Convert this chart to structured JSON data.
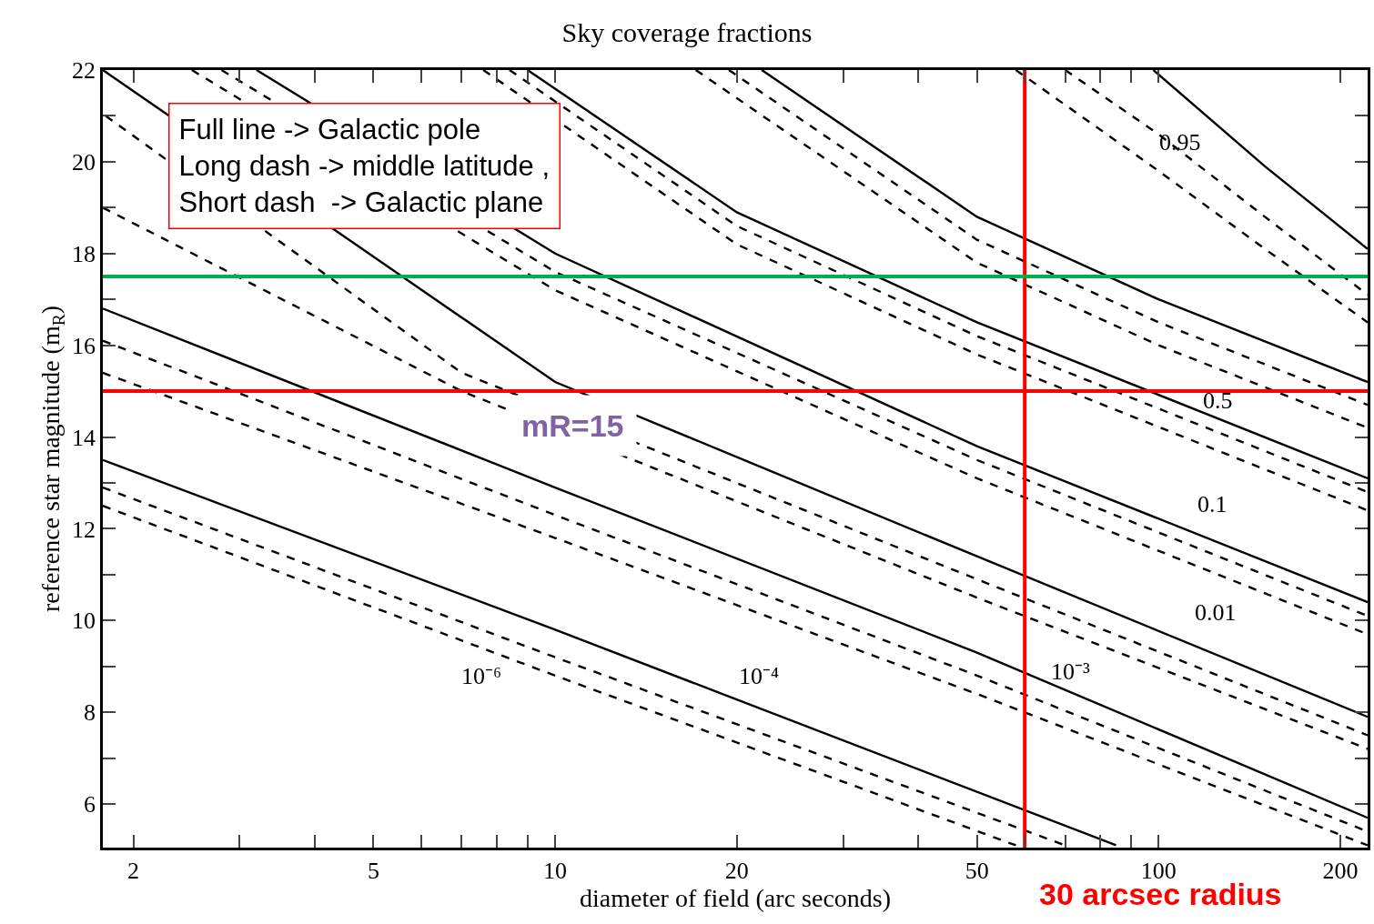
{
  "chart_data": {
    "type": "line",
    "title": "Sky coverage fractions",
    "xlabel": "diameter of field (arc seconds)",
    "ylabel": "reference star magnitude (m$_{R}$)",
    "log": "x",
    "xlim": [
      1.78,
      222
    ],
    "ylim": [
      5.05,
      22
    ],
    "xticks": [
      2,
      {
        "value": 3,
        "label": null
      },
      {
        "value": 4,
        "label": null
      },
      5,
      {
        "value": 6,
        "label": null
      },
      {
        "value": 7,
        "label": null
      },
      {
        "value": 8,
        "label": null
      },
      {
        "value": 9,
        "label": null
      },
      10,
      20,
      {
        "value": 30,
        "label": null
      },
      {
        "value": 40,
        "label": null
      },
      50,
      {
        "value": 60,
        "label": null
      },
      {
        "value": 70,
        "label": null
      },
      {
        "value": 80,
        "label": null
      },
      {
        "value": 90,
        "label": null
      },
      100,
      200
    ],
    "yticks": [
      6,
      {
        "value": 7,
        "label": null
      },
      8,
      {
        "value": 9,
        "label": null
      },
      10,
      {
        "value": 11,
        "label": null
      },
      12,
      {
        "value": 13,
        "label": null
      },
      14,
      {
        "value": 15,
        "label": null
      },
      16,
      {
        "value": 17,
        "label": null
      },
      18,
      {
        "value": 19,
        "label": null
      },
      20,
      {
        "value": 21,
        "label": null
      },
      22
    ],
    "series": [
      {
        "color": "#000000",
        "line_style": "solid",
        "x": [
          1.78,
          10,
          85
        ],
        "values": [
          13.5,
          9.8,
          5.1
        ]
      },
      {
        "color": "#000000",
        "line_style": "dashed",
        "x": [
          1.78,
          10,
          70
        ],
        "values": [
          12.9,
          9.2,
          5.1
        ]
      },
      {
        "color": "#000000",
        "line_style": "dashed",
        "x": [
          1.78,
          10,
          58
        ],
        "values": [
          12.5,
          8.8,
          5.1
        ]
      },
      {
        "color": "#000000",
        "line_style": "solid",
        "x": [
          1.78,
          10,
          50,
          222
        ],
        "values": [
          16.8,
          12.9,
          9.3,
          5.7
        ]
      },
      {
        "color": "#000000",
        "line_style": "dashed",
        "x": [
          1.78,
          10,
          50,
          222
        ],
        "values": [
          16.1,
          12.3,
          8.8,
          5.4
        ]
      },
      {
        "color": "#000000",
        "line_style": "dashed",
        "x": [
          1.78,
          10,
          50,
          222
        ],
        "values": [
          15.4,
          11.8,
          8.4,
          5.1
        ]
      },
      {
        "color": "#000000",
        "line_style": "solid",
        "x": [
          1.78,
          10,
          50,
          222
        ],
        "values": [
          22.0,
          15.2,
          11.4,
          7.9
        ]
      },
      {
        "color": "#000000",
        "line_style": "dashed",
        "x": [
          1.8,
          7,
          50,
          222
        ],
        "values": [
          21.0,
          15.4,
          10.9,
          7.5
        ]
      },
      {
        "color": "#000000",
        "line_style": "dashed",
        "x": [
          1.78,
          7,
          50,
          222
        ],
        "values": [
          19.0,
          15.0,
          10.5,
          7.2
        ]
      },
      {
        "color": "#000000",
        "line_style": "solid",
        "x": [
          3.2,
          10,
          50,
          222
        ],
        "values": [
          22.0,
          18.0,
          13.8,
          10.4
        ]
      },
      {
        "color": "#000000",
        "line_style": "dashed",
        "x": [
          2.8,
          10,
          50,
          222
        ],
        "values": [
          22.0,
          17.6,
          13.5,
          10.1
        ]
      },
      {
        "color": "#000000",
        "line_style": "dashed",
        "x": [
          2.5,
          10,
          50,
          222
        ],
        "values": [
          22.0,
          17.2,
          13.1,
          9.7
        ]
      },
      {
        "color": "#000000",
        "line_style": "solid",
        "x": [
          9,
          20,
          50,
          222
        ],
        "values": [
          22.0,
          18.9,
          16.5,
          13.1
        ]
      },
      {
        "color": "#000000",
        "line_style": "dashed",
        "x": [
          8.4,
          20,
          50,
          222
        ],
        "values": [
          22.0,
          18.6,
          16.2,
          12.8
        ]
      },
      {
        "color": "#000000",
        "line_style": "dashed",
        "x": [
          7.6,
          20,
          50,
          222
        ],
        "values": [
          22.0,
          18.2,
          15.8,
          12.4
        ]
      },
      {
        "color": "#000000",
        "line_style": "solid",
        "x": [
          22,
          50,
          100,
          222
        ],
        "values": [
          22.0,
          18.8,
          17.0,
          15.2
        ]
      },
      {
        "color": "#000000",
        "line_style": "dashed",
        "x": [
          19.4,
          50,
          100,
          222
        ],
        "values": [
          22.0,
          18.3,
          16.5,
          14.7
        ]
      },
      {
        "color": "#000000",
        "line_style": "dashed",
        "x": [
          17.1,
          50,
          100,
          222
        ],
        "values": [
          22.0,
          17.8,
          16.0,
          14.2
        ]
      },
      {
        "color": "#000000",
        "line_style": "solid",
        "x": [
          98,
          150,
          222
        ],
        "values": [
          22.0,
          19.9,
          18.1
        ]
      },
      {
        "color": "#000000",
        "line_style": "dashed",
        "x": [
          70,
          100,
          150,
          222
        ],
        "values": [
          22.0,
          20.6,
          18.8,
          17.1
        ]
      },
      {
        "color": "#000000",
        "line_style": "dashed",
        "x": [
          58,
          100,
          150,
          222
        ],
        "values": [
          22.0,
          19.8,
          18.1,
          16.5
        ]
      }
    ],
    "ref_lines": [
      {
        "axis": "y",
        "value": 15,
        "label": "mR=15",
        "color": "#ff0000"
      },
      {
        "axis": "y",
        "value": 17.5,
        "color": "#00b050"
      },
      {
        "axis": "x",
        "value": 60,
        "label": "30 arcsec radius",
        "color": "#ff0000"
      }
    ],
    "annotations": [
      "Full line -> Galactic pole\nLong dash -> middle latitude ,\nShort dash  -> Galactic plane",
      "10⁻⁶",
      "10⁻⁴",
      "10⁻³",
      "0.01",
      "0.1",
      "0.5",
      "0.95"
    ]
  }
}
